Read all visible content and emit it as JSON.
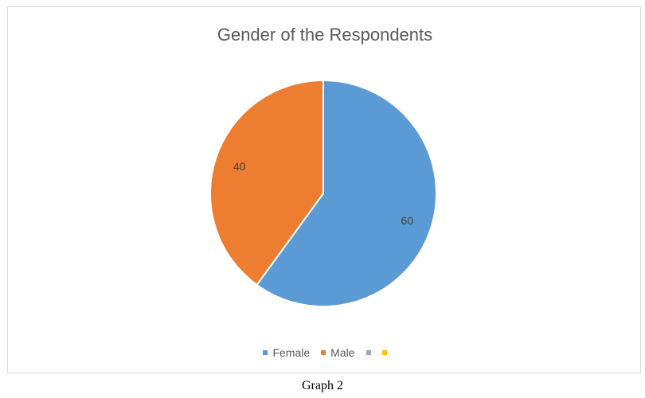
{
  "chart_data": {
    "type": "pie",
    "title": "Gender of the Respondents",
    "slices": [
      {
        "label": "Female",
        "value": 60,
        "color": "#5b9bd5"
      },
      {
        "label": "Male",
        "value": 40,
        "color": "#ed7d31"
      }
    ],
    "legend": {
      "placement": "bottom",
      "entries": [
        {
          "label": "Female",
          "color": "#5b9bd5"
        },
        {
          "label": "Male",
          "color": "#ed7d31"
        },
        {
          "label": "",
          "color": "#a5a5a5"
        },
        {
          "label": "",
          "color": "#ffc000"
        }
      ]
    }
  },
  "caption": "Graph 2"
}
